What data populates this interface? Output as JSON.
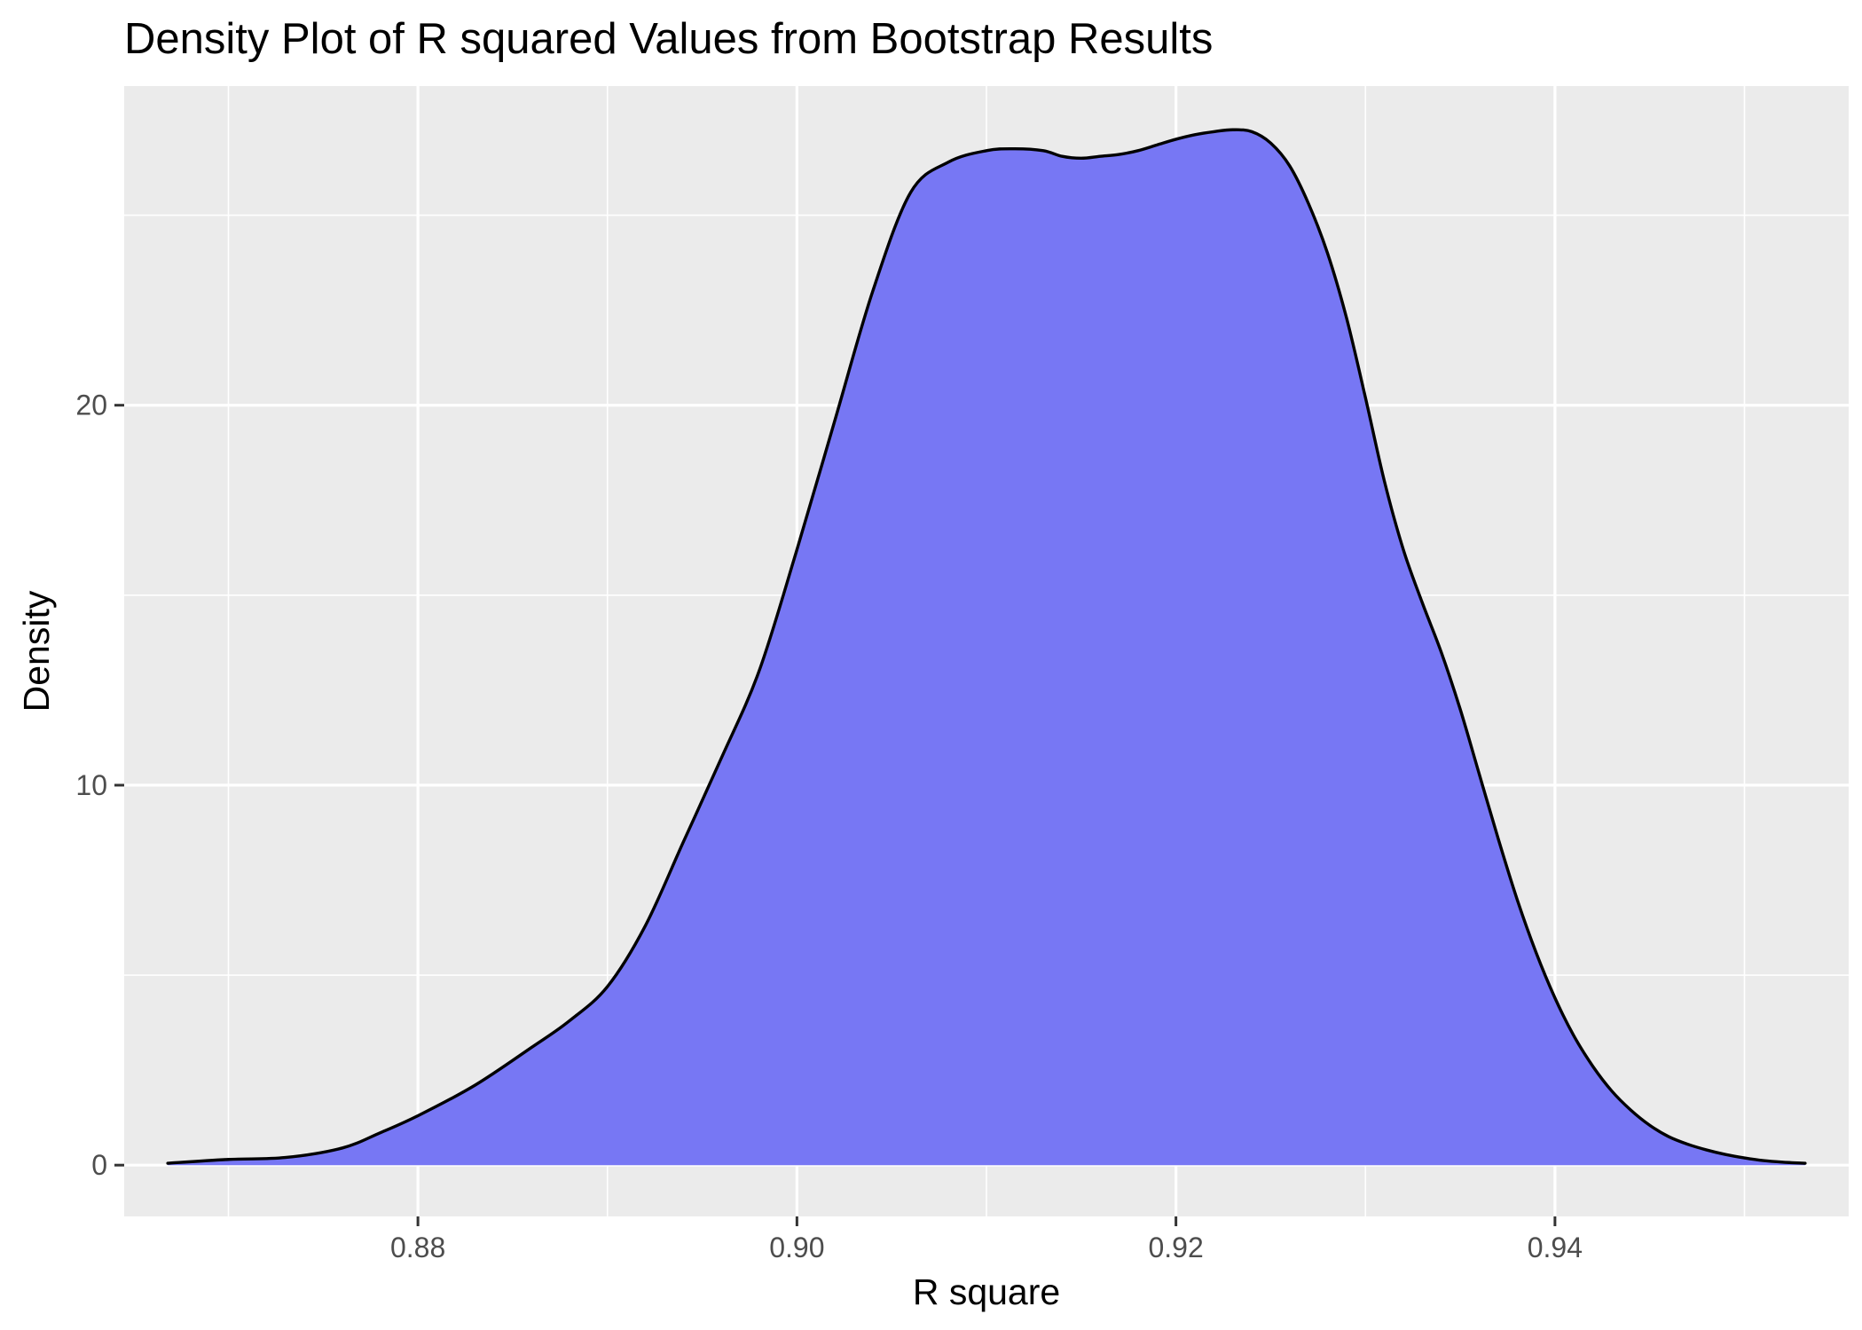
{
  "chart_data": {
    "type": "area",
    "title": "Density Plot of R squared Values from Bootstrap Results",
    "xlabel": "R square",
    "ylabel": "Density",
    "xlim": [
      0.8645,
      0.9555
    ],
    "ylim": [
      -1.35,
      28.4
    ],
    "x_ticks": [
      0.88,
      0.9,
      0.92,
      0.94
    ],
    "x_tick_labels": [
      "0.88",
      "0.90",
      "0.92",
      "0.94"
    ],
    "x_minor_ticks": [
      0.87,
      0.89,
      0.91,
      0.93,
      0.95
    ],
    "y_ticks": [
      0,
      10,
      20
    ],
    "y_tick_labels": [
      "0",
      "10",
      "20"
    ],
    "y_minor_ticks": [
      5,
      15,
      25
    ],
    "grid": true,
    "fill_color": "#7777f4",
    "line_color": "#000000",
    "panel_color": "#ebebeb",
    "series": [
      {
        "x": [
          0.8668,
          0.87,
          0.873,
          0.876,
          0.878,
          0.88,
          0.883,
          0.886,
          0.888,
          0.89,
          0.892,
          0.894,
          0.896,
          0.898,
          0.9,
          0.902,
          0.904,
          0.906,
          0.908,
          0.91,
          0.9115,
          0.913,
          0.914,
          0.915,
          0.916,
          0.917,
          0.918,
          0.919,
          0.92,
          0.921,
          0.922,
          0.923,
          0.924,
          0.925,
          0.926,
          0.927,
          0.928,
          0.929,
          0.93,
          0.931,
          0.932,
          0.933,
          0.934,
          0.935,
          0.936,
          0.937,
          0.938,
          0.939,
          0.94,
          0.941,
          0.942,
          0.943,
          0.944,
          0.945,
          0.946,
          0.947,
          0.948,
          0.949,
          0.95,
          0.951,
          0.952,
          0.9532
        ],
        "y": [
          0.05,
          0.15,
          0.2,
          0.45,
          0.85,
          1.3,
          2.1,
          3.1,
          3.8,
          4.7,
          6.3,
          8.5,
          10.7,
          13.0,
          16.2,
          19.6,
          23.0,
          25.6,
          26.4,
          26.7,
          26.75,
          26.7,
          26.55,
          26.5,
          26.55,
          26.6,
          26.7,
          26.85,
          27.0,
          27.12,
          27.2,
          27.25,
          27.2,
          26.9,
          26.3,
          25.3,
          24.0,
          22.3,
          20.2,
          18.0,
          16.2,
          14.8,
          13.5,
          12.0,
          10.3,
          8.6,
          7.0,
          5.6,
          4.4,
          3.4,
          2.6,
          1.95,
          1.45,
          1.05,
          0.75,
          0.55,
          0.4,
          0.28,
          0.19,
          0.12,
          0.08,
          0.05
        ]
      }
    ]
  }
}
